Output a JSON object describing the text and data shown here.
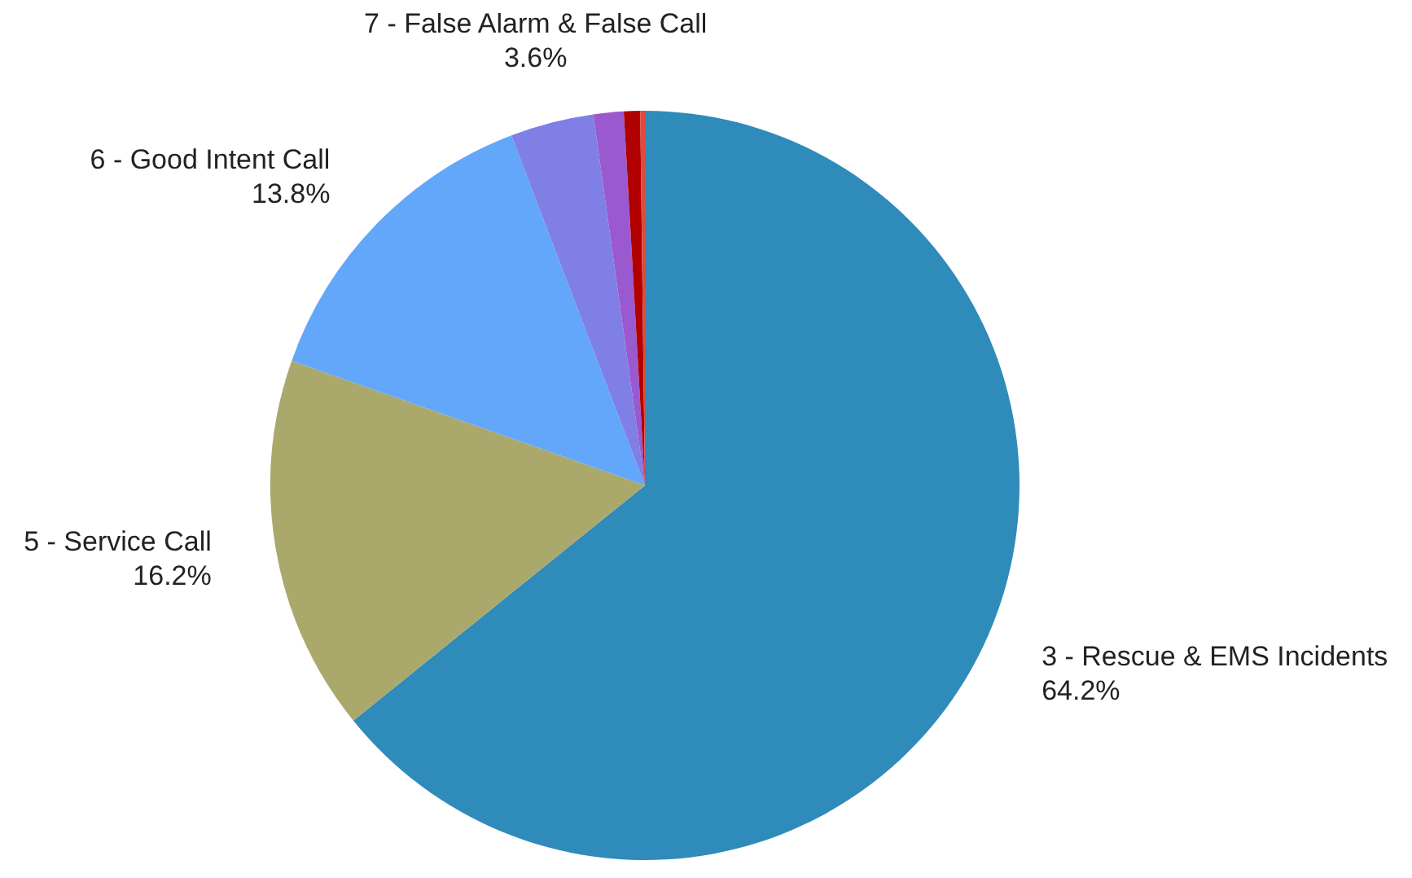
{
  "chart_data": {
    "type": "pie",
    "categories": [
      "3 - Rescue & EMS Incidents",
      "5 - Service Call",
      "6 - Good Intent Call",
      "7 - False Alarm & False Call",
      null,
      null,
      null
    ],
    "values": [
      64.2,
      16.2,
      13.8,
      3.6,
      1.3,
      0.7,
      0.2
    ],
    "value_labels": [
      "64.2%",
      "16.2%",
      "13.8%",
      "3.6%",
      null,
      null,
      null
    ],
    "colors": [
      "#2e8bba",
      "#aba86c",
      "#63a7fa",
      "#7f7fe6",
      "#9b59d0",
      "#b00000",
      "#e04a3a"
    ],
    "legend": false
  }
}
